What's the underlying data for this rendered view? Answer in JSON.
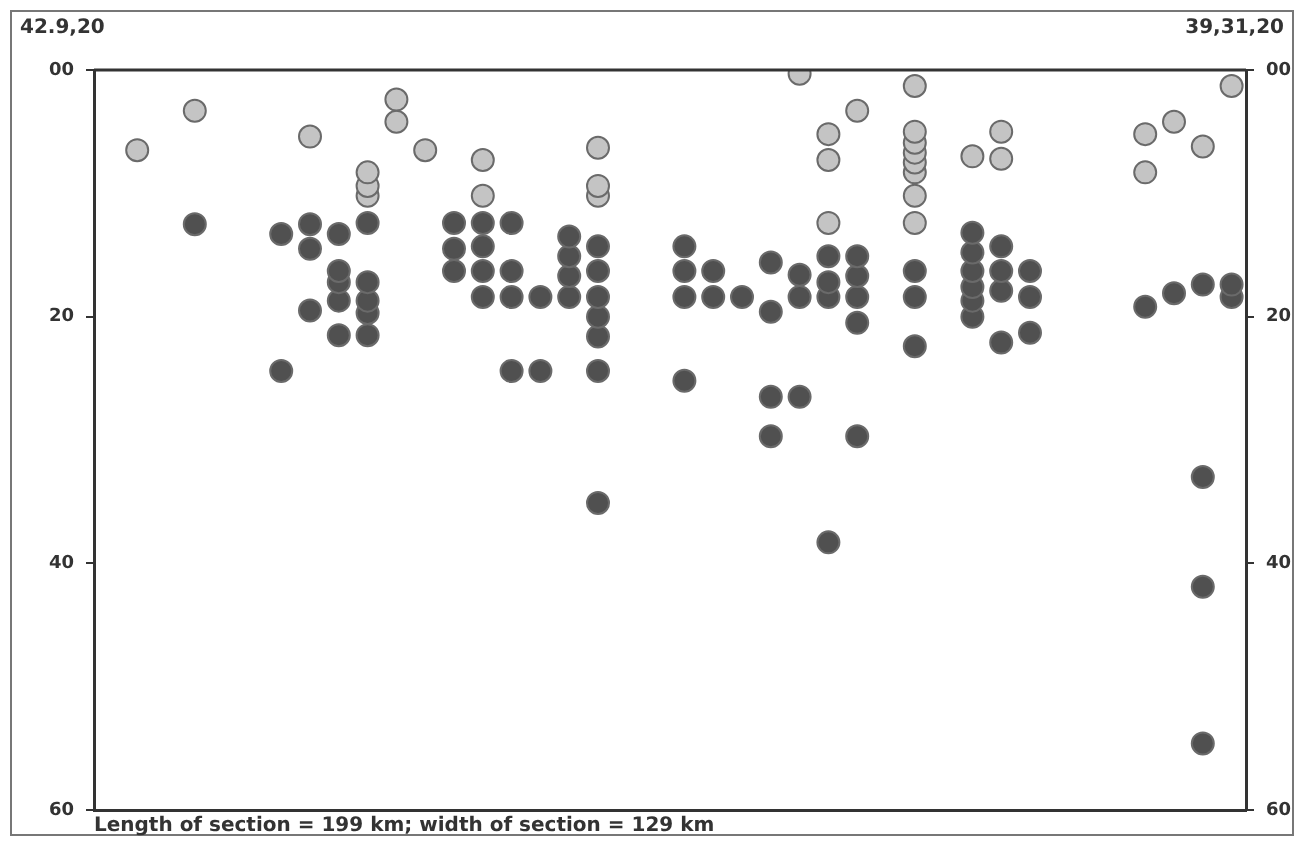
{
  "chart_data": {
    "type": "scatter",
    "annotations": [
      "42.9,20",
      "39,31,20",
      "Length of section = 199 km; width of section = 129 km"
    ],
    "categories": [
      null,
      null,
      null,
      null,
      null,
      null,
      null,
      null,
      null,
      null,
      null,
      null,
      null,
      null,
      null,
      null,
      null,
      null,
      null,
      null,
      null,
      null,
      null,
      null,
      null,
      null,
      null,
      null,
      null,
      null,
      null,
      null,
      null,
      null,
      null,
      null,
      null,
      null,
      null,
      null
    ],
    "ylim": [
      60,
      0
    ],
    "yticks": [
      {
        "value": 0,
        "label": "00"
      },
      20,
      40,
      60
    ],
    "y2lim": [
      60,
      0
    ],
    "y2ticks": [
      {
        "value": 0,
        "label": "00"
      },
      20,
      40,
      60
    ],
    "tick_labels": "y",
    "grid": false,
    "legend": false,
    "marker": "circle",
    "series": [
      {
        "color": "#c4c4c4",
        "values": [
          null,
          6.5,
          null,
          3.3,
          null,
          null,
          null,
          5.4,
          null,
          8.3,
          2.4,
          6.5,
          null,
          7.3,
          null,
          null,
          null,
          6.3,
          null,
          null,
          null,
          null,
          null,
          null,
          0.3,
          5.2,
          3.3,
          null,
          1.3,
          null,
          7.0,
          5.0,
          null,
          null,
          null,
          null,
          5.2,
          4.2,
          6.2,
          1.3
        ]
      },
      {
        "color": "#c4c4c4",
        "values": [
          null,
          null,
          null,
          null,
          null,
          null,
          null,
          null,
          null,
          9.4,
          4.2,
          null,
          null,
          10.2,
          null,
          null,
          null,
          9.4,
          null,
          null,
          null,
          null,
          null,
          null,
          null,
          7.3,
          null,
          null,
          5.0,
          null,
          null,
          7.2,
          null,
          null,
          null,
          null,
          8.3,
          null,
          null,
          null
        ]
      },
      {
        "color": "#c4c4c4",
        "values": [
          null,
          null,
          null,
          null,
          null,
          null,
          null,
          null,
          null,
          10.2,
          null,
          null,
          null,
          null,
          null,
          null,
          null,
          10.2,
          null,
          null,
          null,
          null,
          null,
          null,
          null,
          12.4,
          null,
          null,
          5.9,
          null,
          null,
          null,
          null,
          null,
          null,
          null,
          null,
          null,
          null,
          null
        ]
      },
      {
        "color": "#c4c4c4",
        "values": [
          null,
          null,
          null,
          null,
          null,
          null,
          null,
          null,
          null,
          null,
          null,
          null,
          null,
          null,
          null,
          null,
          null,
          null,
          null,
          null,
          null,
          null,
          null,
          null,
          null,
          null,
          null,
          null,
          6.7,
          null,
          null,
          null,
          null,
          null,
          null,
          null,
          null,
          null,
          null,
          null
        ]
      },
      {
        "color": "#c4c4c4",
        "values": [
          null,
          null,
          null,
          null,
          null,
          null,
          null,
          null,
          null,
          null,
          null,
          null,
          null,
          null,
          null,
          null,
          null,
          null,
          null,
          null,
          null,
          null,
          null,
          null,
          null,
          null,
          null,
          null,
          7.5,
          null,
          null,
          null,
          null,
          null,
          null,
          null,
          null,
          null,
          null,
          null
        ]
      },
      {
        "color": "#c4c4c4",
        "values": [
          null,
          null,
          null,
          null,
          null,
          null,
          null,
          null,
          null,
          null,
          null,
          null,
          null,
          null,
          null,
          null,
          null,
          null,
          null,
          null,
          null,
          null,
          null,
          null,
          null,
          null,
          null,
          null,
          8.3,
          null,
          null,
          null,
          null,
          null,
          null,
          null,
          null,
          null,
          null,
          null
        ]
      },
      {
        "color": "#c4c4c4",
        "values": [
          null,
          null,
          null,
          null,
          null,
          null,
          null,
          null,
          null,
          null,
          null,
          null,
          null,
          null,
          null,
          null,
          null,
          null,
          null,
          null,
          null,
          null,
          null,
          null,
          null,
          null,
          null,
          null,
          10.2,
          null,
          null,
          null,
          null,
          null,
          null,
          null,
          null,
          null,
          null,
          null
        ]
      },
      {
        "color": "#c4c4c4",
        "values": [
          null,
          null,
          null,
          null,
          null,
          null,
          null,
          null,
          null,
          null,
          null,
          null,
          null,
          null,
          null,
          null,
          null,
          null,
          null,
          null,
          null,
          null,
          null,
          null,
          null,
          null,
          null,
          null,
          12.4,
          null,
          null,
          null,
          null,
          null,
          null,
          null,
          null,
          null,
          null,
          null
        ]
      },
      {
        "color": "#505050",
        "values": [
          null,
          null,
          null,
          12.5,
          null,
          null,
          13.3,
          12.5,
          13.3,
          12.4,
          null,
          null,
          12.4,
          12.4,
          12.4,
          18.4,
          13.5,
          14.3,
          null,
          null,
          14.3,
          16.3,
          18.4,
          15.6,
          16.6,
          15.1,
          15.1,
          null,
          16.3,
          null,
          13.2,
          14.3,
          16.3,
          null,
          null,
          null,
          19.2,
          18.1,
          17.4,
          17.4
        ]
      },
      {
        "color": "#505050",
        "values": [
          null,
          null,
          null,
          null,
          null,
          null,
          24.4,
          14.5,
          16.3,
          17.2,
          null,
          null,
          14.5,
          14.3,
          16.3,
          24.4,
          15.1,
          16.3,
          null,
          null,
          16.3,
          18.4,
          null,
          19.6,
          18.4,
          17.2,
          16.7,
          null,
          18.4,
          null,
          14.8,
          16.3,
          18.4,
          null,
          null,
          null,
          null,
          null,
          33,
          18.4
        ]
      },
      {
        "color": "#505050",
        "values": [
          null,
          null,
          null,
          null,
          null,
          null,
          null,
          19.5,
          17.2,
          18.7,
          null,
          null,
          16.3,
          16.3,
          18.4,
          null,
          16.7,
          18.4,
          null,
          null,
          18.4,
          null,
          null,
          26.5,
          26.5,
          18.4,
          18.4,
          null,
          22.4,
          null,
          16.3,
          17.9,
          21.3,
          null,
          null,
          null,
          null,
          null,
          41.9,
          null
        ]
      },
      {
        "color": "#505050",
        "values": [
          null,
          null,
          null,
          null,
          null,
          null,
          null,
          null,
          18.7,
          19.7,
          null,
          null,
          null,
          18.4,
          24.4,
          null,
          18.4,
          20.0,
          null,
          null,
          25.2,
          null,
          null,
          29.7,
          null,
          38.3,
          20.5,
          null,
          null,
          null,
          17.6,
          22.1,
          null,
          null,
          null,
          null,
          null,
          null,
          54.6,
          null
        ]
      },
      {
        "color": "#505050",
        "values": [
          null,
          null,
          null,
          null,
          null,
          null,
          null,
          null,
          21.5,
          21.5,
          null,
          null,
          null,
          null,
          null,
          null,
          null,
          21.6,
          null,
          null,
          null,
          null,
          null,
          null,
          null,
          null,
          29.7,
          null,
          null,
          null,
          18.7,
          null,
          null,
          null,
          null,
          null,
          null,
          null,
          null,
          null
        ]
      },
      {
        "color": "#505050",
        "values": [
          null,
          null,
          null,
          null,
          null,
          null,
          null,
          null,
          null,
          null,
          null,
          null,
          null,
          null,
          null,
          null,
          null,
          24.4,
          null,
          null,
          null,
          null,
          null,
          null,
          null,
          null,
          null,
          null,
          null,
          null,
          20.0,
          null,
          null,
          null,
          null,
          null,
          null,
          null,
          null,
          null
        ]
      },
      {
        "color": "#505050",
        "values": [
          null,
          null,
          null,
          null,
          null,
          null,
          null,
          null,
          null,
          null,
          null,
          null,
          null,
          null,
          null,
          null,
          null,
          35.1,
          null,
          null,
          null,
          null,
          null,
          null,
          null,
          null,
          null,
          null,
          null,
          null,
          null,
          null,
          null,
          null,
          null,
          null,
          null,
          null,
          null,
          null
        ]
      }
    ]
  }
}
